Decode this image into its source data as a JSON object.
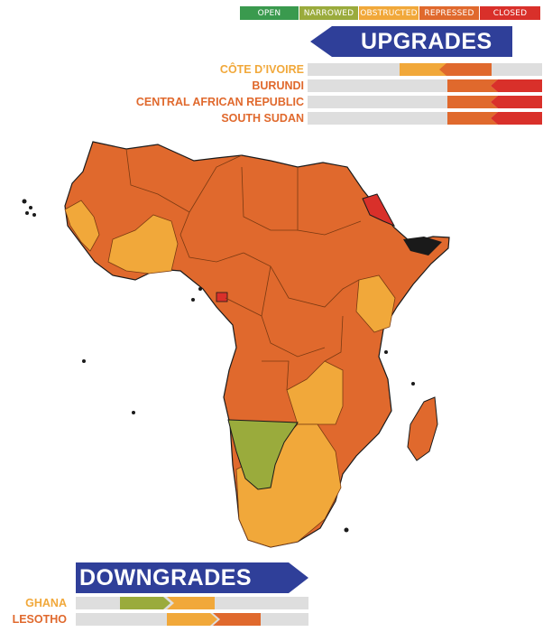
{
  "legend": [
    {
      "label": "OPEN",
      "color": "#3a9a4e"
    },
    {
      "label": "NARROWED",
      "color": "#9aab3c"
    },
    {
      "label": "OBSTRUCTED",
      "color": "#f1a83a"
    },
    {
      "label": "REPRESSED",
      "color": "#e0692d"
    },
    {
      "label": "CLOSED",
      "color": "#d9302a"
    }
  ],
  "upgrades": {
    "title": "UPGRADES",
    "items": [
      {
        "name": "CÔTE D’IVOIRE",
        "from": "REPRESSED",
        "to": "OBSTRUCTED"
      },
      {
        "name": "BURUNDI",
        "from": "CLOSED",
        "to": "REPRESSED"
      },
      {
        "name": "CENTRAL AFRICAN REPUBLIC",
        "from": "CLOSED",
        "to": "REPRESSED"
      },
      {
        "name": "SOUTH SUDAN",
        "from": "CLOSED",
        "to": "REPRESSED"
      }
    ]
  },
  "downgrades": {
    "title": "DOWNGRADES",
    "items": [
      {
        "name": "GHANA",
        "from": "NARROWED",
        "to": "OBSTRUCTED"
      },
      {
        "name": "LESOTHO",
        "from": "OBSTRUCTED",
        "to": "REPRESSED"
      }
    ]
  },
  "colors": {
    "repressed": "#e0692d",
    "obstructed": "#f1a83a",
    "narrowed": "#9aab3c",
    "closed": "#d9302a",
    "no_data": "#1a1a1a",
    "track": "#dedede",
    "banner": "#2f3f99"
  }
}
